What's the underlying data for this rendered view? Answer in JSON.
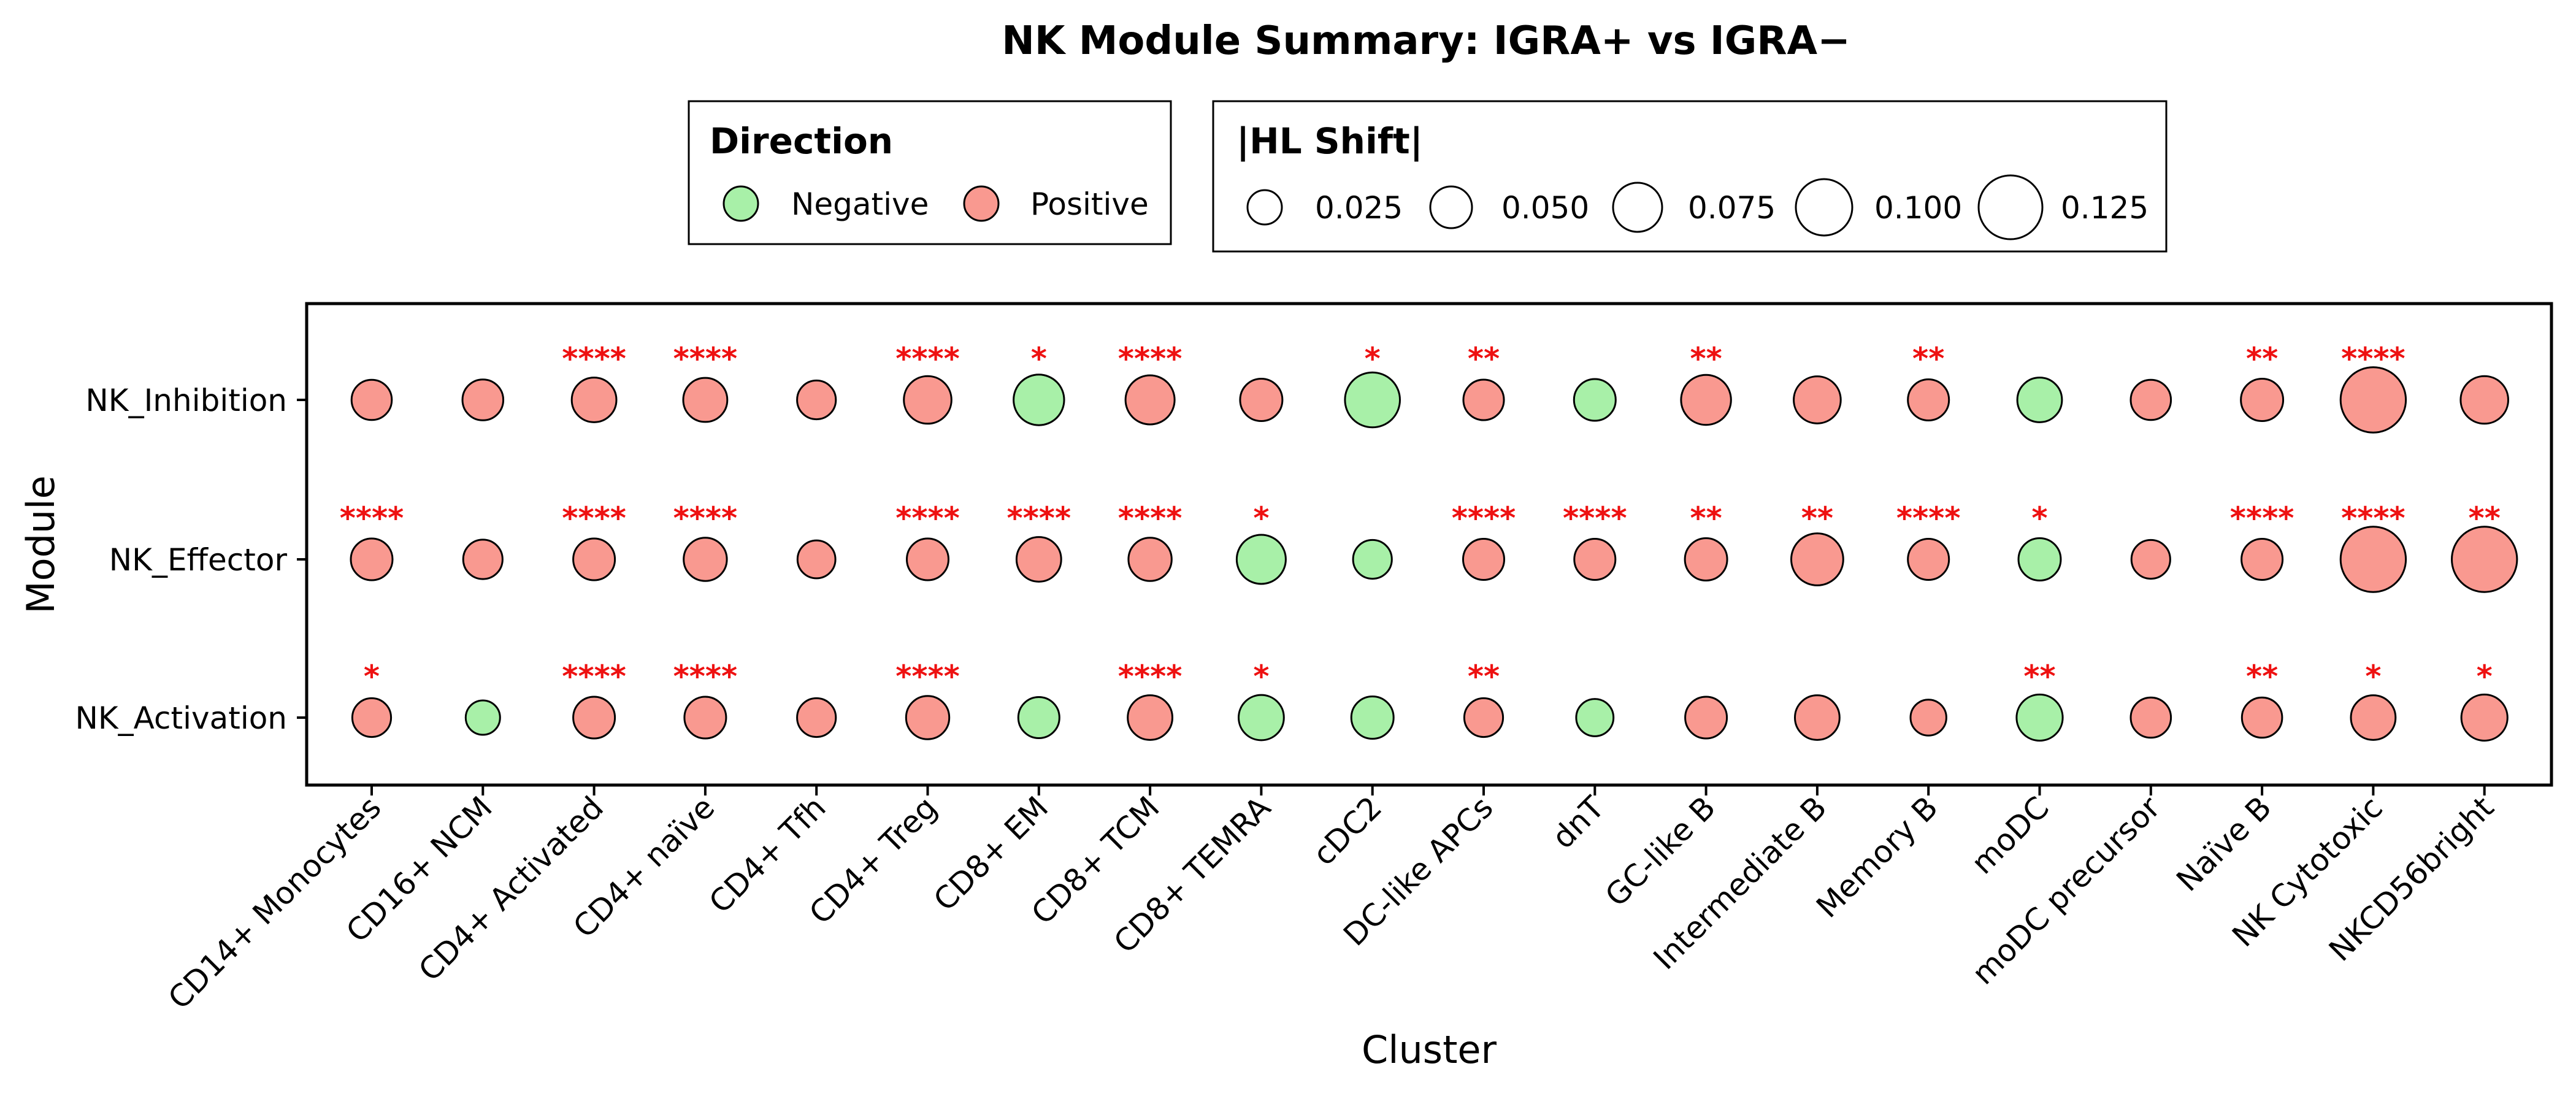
{
  "chart_data": {
    "type": "scatter",
    "title": "NK Module Summary: IGRA+ vs IGRA−",
    "xlabel": "Cluster",
    "ylabel": "Module",
    "categories": [
      "CD14+ Monocytes",
      "CD16+ NCM",
      "CD4+ Activated",
      "CD4+ naïve",
      "CD4+ Tfh",
      "CD4+ Treg",
      "CD8+ EM",
      "CD8+ TCM",
      "CD8+ TEMRA",
      "cDC2",
      "DC-like APCs",
      "dnT",
      "GC-like B",
      "Intermediate B",
      "Memory B",
      "moDC",
      "moDC precursor",
      "Naïve B",
      "NK Cytotoxic",
      "NKCD56bright"
    ],
    "modules": [
      "NK_Inhibition",
      "NK_Effector",
      "NK_Activation"
    ],
    "legend_direction": {
      "title": "Direction",
      "items": [
        {
          "label": "Negative",
          "color": "#a8f0a8"
        },
        {
          "label": "Positive",
          "color": "#f99990"
        }
      ]
    },
    "legend_size": {
      "title": "|HL Shift|",
      "items": [
        {
          "label": "0.025",
          "value": 0.025
        },
        {
          "label": "0.050",
          "value": 0.05
        },
        {
          "label": "0.075",
          "value": 0.075
        },
        {
          "label": "0.100",
          "value": 0.1
        },
        {
          "label": "0.125",
          "value": 0.125
        }
      ]
    },
    "colors": {
      "positive": "#f99990",
      "negative": "#a8f0a8",
      "significance": "#ee1111"
    },
    "series": [
      {
        "name": "NK_Inhibition",
        "hl_shift": [
          0.045,
          0.047,
          0.06,
          0.058,
          0.04,
          0.07,
          0.08,
          0.075,
          0.052,
          0.095,
          0.046,
          0.05,
          0.078,
          0.068,
          0.048,
          0.06,
          0.045,
          0.052,
          0.13,
          0.07
        ],
        "direction": [
          "Positive",
          "Positive",
          "Positive",
          "Positive",
          "Positive",
          "Positive",
          "Negative",
          "Positive",
          "Positive",
          "Negative",
          "Positive",
          "Negative",
          "Positive",
          "Positive",
          "Positive",
          "Negative",
          "Positive",
          "Positive",
          "Positive",
          "Positive"
        ],
        "significance": [
          "",
          "",
          "****",
          "****",
          "",
          "****",
          "*",
          "****",
          "",
          "*",
          "**",
          "",
          "**",
          "",
          "**",
          "",
          "",
          "**",
          "****",
          ""
        ]
      },
      {
        "name": "NK_Effector",
        "hl_shift": [
          0.05,
          0.042,
          0.05,
          0.055,
          0.037,
          0.05,
          0.06,
          0.055,
          0.075,
          0.04,
          0.048,
          0.048,
          0.052,
          0.085,
          0.048,
          0.052,
          0.04,
          0.048,
          0.13,
          0.13
        ],
        "direction": [
          "Positive",
          "Positive",
          "Positive",
          "Positive",
          "Positive",
          "Positive",
          "Positive",
          "Positive",
          "Negative",
          "Negative",
          "Positive",
          "Positive",
          "Positive",
          "Positive",
          "Positive",
          "Negative",
          "Positive",
          "Positive",
          "Positive",
          "Positive"
        ],
        "significance": [
          "****",
          "",
          "****",
          "****",
          "",
          "****",
          "****",
          "****",
          "*",
          "",
          "****",
          "****",
          "**",
          "**",
          "****",
          "*",
          "",
          "****",
          "****",
          "**"
        ]
      },
      {
        "name": "NK_Activation",
        "hl_shift": [
          0.04,
          0.025,
          0.05,
          0.05,
          0.04,
          0.055,
          0.048,
          0.06,
          0.062,
          0.052,
          0.04,
          0.035,
          0.05,
          0.06,
          0.03,
          0.065,
          0.045,
          0.045,
          0.06,
          0.065
        ],
        "direction": [
          "Positive",
          "Negative",
          "Positive",
          "Positive",
          "Positive",
          "Positive",
          "Negative",
          "Positive",
          "Negative",
          "Negative",
          "Positive",
          "Negative",
          "Positive",
          "Positive",
          "Positive",
          "Negative",
          "Positive",
          "Positive",
          "Positive",
          "Positive"
        ],
        "significance": [
          "*",
          "",
          "****",
          "****",
          "",
          "****",
          "",
          "****",
          "*",
          "",
          "**",
          "",
          "",
          "",
          "",
          "**",
          "",
          "**",
          "*",
          "*"
        ]
      }
    ],
    "grid": false
  }
}
